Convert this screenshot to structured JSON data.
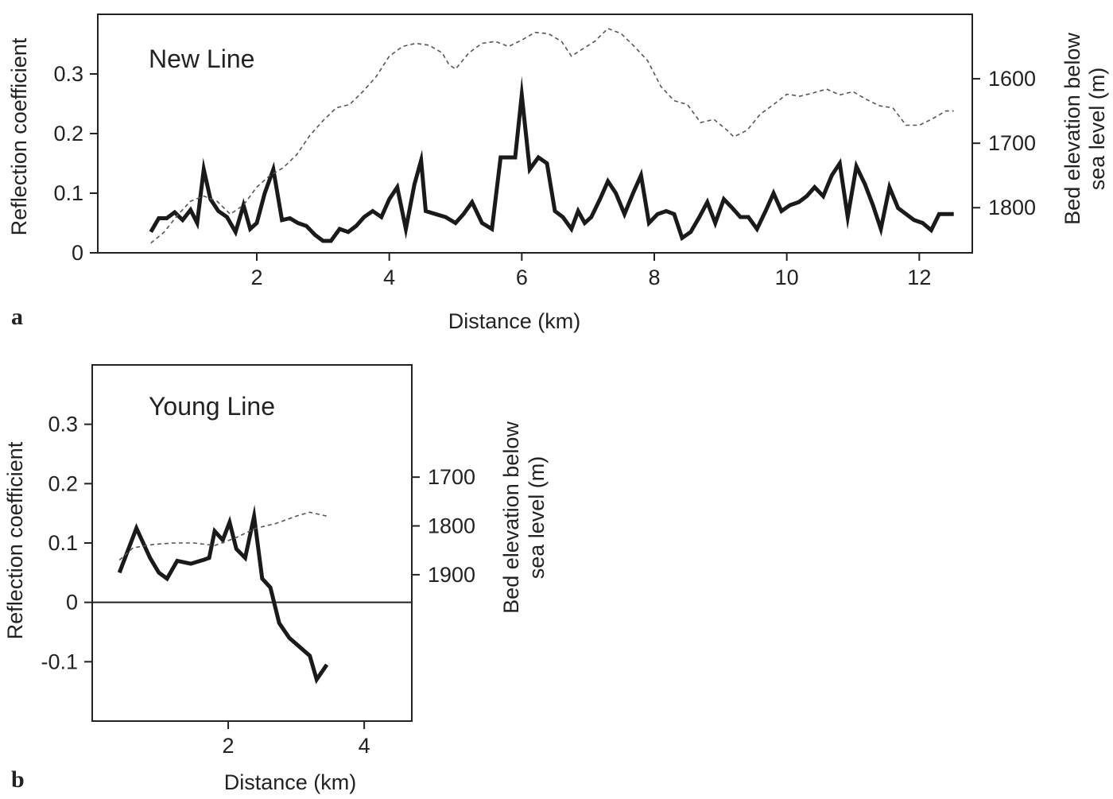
{
  "chart_data": [
    {
      "type": "line",
      "panel_label": "a",
      "title": "New Line",
      "xlabel": "Distance (km)",
      "ylabel": "Reflection coefficient",
      "y2label_line1": "Bed elevation below",
      "y2label_line2": "sea level (m)",
      "xlim": [
        -0.4,
        12.8
      ],
      "ylim": [
        0,
        0.4
      ],
      "y2lim_desc": [
        1500,
        1870
      ],
      "x_ticks": [
        2,
        4,
        6,
        8,
        10,
        12
      ],
      "y_ticks": [
        0,
        0.1,
        0.2,
        0.3
      ],
      "y_tick_labels": [
        "0",
        "0.1",
        "0.2",
        "0.3"
      ],
      "y2_ticks": [
        1600,
        1700,
        1800
      ],
      "y2_tick_labels": [
        "1600",
        "1700",
        "1800"
      ],
      "grid": false,
      "legend": "none",
      "series": [
        {
          "style": "solid-thick",
          "axis": "left",
          "x": [
            0.4,
            0.52,
            0.64,
            0.76,
            0.88,
            1.0,
            1.1,
            1.2,
            1.3,
            1.42,
            1.55,
            1.68,
            1.8,
            1.9,
            2.0,
            2.12,
            2.25,
            2.38,
            2.5,
            2.62,
            2.75,
            2.88,
            3.0,
            3.12,
            3.25,
            3.38,
            3.5,
            3.62,
            3.75,
            3.88,
            4.0,
            4.12,
            4.25,
            4.38,
            4.48,
            4.55,
            4.7,
            4.85,
            5.0,
            5.12,
            5.25,
            5.4,
            5.55,
            5.68,
            5.8,
            5.9,
            6.0,
            6.12,
            6.25,
            6.38,
            6.5,
            6.62,
            6.75,
            6.85,
            6.95,
            7.05,
            7.18,
            7.3,
            7.42,
            7.55,
            7.68,
            7.8,
            7.92,
            8.05,
            8.18,
            8.3,
            8.42,
            8.55,
            8.68,
            8.8,
            8.92,
            9.05,
            9.18,
            9.3,
            9.42,
            9.55,
            9.68,
            9.8,
            9.92,
            10.05,
            10.18,
            10.3,
            10.42,
            10.55,
            10.68,
            10.8,
            10.92,
            11.05,
            11.18,
            11.3,
            11.42,
            11.55,
            11.68,
            11.8,
            11.92,
            12.05,
            12.18,
            12.3,
            12.42,
            12.52
          ],
          "y": [
            0.035,
            0.058,
            0.058,
            0.068,
            0.055,
            0.072,
            0.05,
            0.14,
            0.09,
            0.07,
            0.06,
            0.035,
            0.08,
            0.04,
            0.05,
            0.1,
            0.14,
            0.055,
            0.058,
            0.05,
            0.045,
            0.03,
            0.02,
            0.02,
            0.04,
            0.035,
            0.045,
            0.06,
            0.07,
            0.06,
            0.09,
            0.11,
            0.04,
            0.115,
            0.155,
            0.07,
            0.065,
            0.06,
            0.05,
            0.065,
            0.085,
            0.05,
            0.04,
            0.16,
            0.16,
            0.16,
            0.265,
            0.14,
            0.16,
            0.15,
            0.07,
            0.06,
            0.04,
            0.07,
            0.05,
            0.06,
            0.09,
            0.12,
            0.1,
            0.065,
            0.1,
            0.13,
            0.05,
            0.065,
            0.07,
            0.065,
            0.025,
            0.035,
            0.06,
            0.085,
            0.05,
            0.09,
            0.075,
            0.06,
            0.06,
            0.04,
            0.07,
            0.1,
            0.07,
            0.08,
            0.085,
            0.095,
            0.11,
            0.095,
            0.13,
            0.15,
            0.06,
            0.145,
            0.115,
            0.08,
            0.04,
            0.11,
            0.075,
            0.065,
            0.055,
            0.05,
            0.038,
            0.065,
            0.065,
            0.065
          ]
        },
        {
          "style": "dashed-thin",
          "axis": "right",
          "x": [
            0.4,
            0.6,
            0.8,
            1.0,
            1.2,
            1.4,
            1.6,
            1.8,
            2.0,
            2.2,
            2.4,
            2.6,
            2.8,
            3.0,
            3.2,
            3.4,
            3.6,
            3.8,
            4.0,
            4.2,
            4.4,
            4.6,
            4.8,
            4.9,
            5.0,
            5.2,
            5.4,
            5.6,
            5.8,
            6.0,
            6.2,
            6.4,
            6.6,
            6.75,
            6.9,
            7.1,
            7.3,
            7.5,
            7.7,
            7.9,
            8.1,
            8.3,
            8.5,
            8.7,
            8.9,
            9.1,
            9.2,
            9.4,
            9.6,
            9.8,
            10.0,
            10.2,
            10.4,
            10.6,
            10.8,
            11.0,
            11.2,
            11.4,
            11.6,
            11.8,
            12.0,
            12.2,
            12.4,
            12.52
          ],
          "y": [
            1855,
            1838,
            1812,
            1790,
            1782,
            1790,
            1810,
            1796,
            1768,
            1750,
            1738,
            1718,
            1688,
            1665,
            1645,
            1640,
            1620,
            1597,
            1565,
            1550,
            1545,
            1548,
            1560,
            1578,
            1585,
            1560,
            1545,
            1542,
            1550,
            1540,
            1528,
            1530,
            1542,
            1565,
            1555,
            1542,
            1522,
            1530,
            1550,
            1572,
            1612,
            1634,
            1640,
            1668,
            1663,
            1680,
            1690,
            1680,
            1655,
            1640,
            1624,
            1627,
            1622,
            1616,
            1625,
            1620,
            1632,
            1642,
            1645,
            1672,
            1672,
            1662,
            1650,
            1650
          ]
        }
      ]
    },
    {
      "type": "line",
      "panel_label": "b",
      "title": "Young Line",
      "xlabel": "Distance (km)",
      "ylabel": "Reflection coefficient",
      "y2label_line1": "Bed elevation below",
      "y2label_line2": "sea level (m)",
      "xlim": [
        0,
        4.7
      ],
      "ylim": [
        -0.2,
        0.4
      ],
      "y2lim_desc": [
        1470,
        2200
      ],
      "x_ticks": [
        2,
        4
      ],
      "y_ticks": [
        -0.1,
        0,
        0.1,
        0.2,
        0.3
      ],
      "y_tick_labels": [
        "-0.1",
        "0",
        "0.1",
        "0.2",
        "0.3"
      ],
      "y2_ticks": [
        1700,
        1800,
        1900
      ],
      "y2_tick_labels": [
        "1700",
        "1800",
        "1900"
      ],
      "zero_line": true,
      "grid": false,
      "legend": "none",
      "series": [
        {
          "style": "solid-thick",
          "axis": "left",
          "x": [
            0.4,
            0.65,
            0.85,
            0.98,
            1.1,
            1.25,
            1.45,
            1.65,
            1.72,
            1.8,
            1.92,
            2.02,
            2.12,
            2.25,
            2.38,
            2.5,
            2.62,
            2.75,
            2.9,
            3.05,
            3.2,
            3.3,
            3.45
          ],
          "y": [
            0.05,
            0.125,
            0.075,
            0.05,
            0.04,
            0.07,
            0.065,
            0.072,
            0.075,
            0.12,
            0.105,
            0.135,
            0.09,
            0.075,
            0.145,
            0.04,
            0.025,
            -0.035,
            -0.06,
            -0.075,
            -0.09,
            -0.13,
            -0.105
          ]
        },
        {
          "style": "dashed-thin",
          "axis": "right",
          "x": [
            0.4,
            0.6,
            0.9,
            1.2,
            1.5,
            1.8,
            2.1,
            2.4,
            2.7,
            3.0,
            3.2,
            3.45
          ],
          "y": [
            1870,
            1845,
            1838,
            1835,
            1835,
            1840,
            1825,
            1805,
            1795,
            1780,
            1772,
            1780
          ]
        }
      ]
    }
  ]
}
